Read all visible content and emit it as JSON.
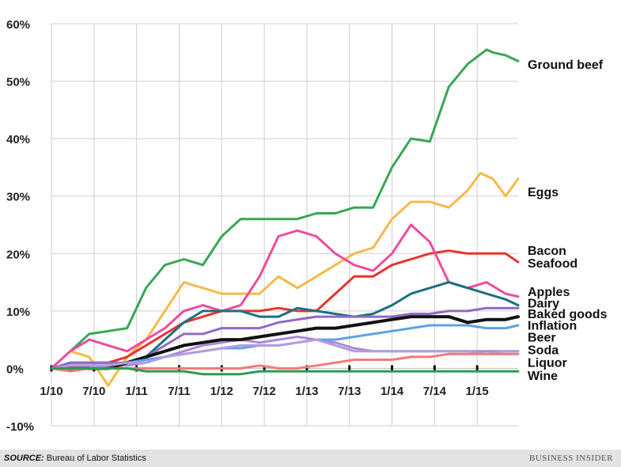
{
  "chart_data": {
    "type": "line",
    "title": "",
    "xlabel": "",
    "ylabel": "",
    "ylim": [
      -10,
      60
    ],
    "yticks": [
      "60%",
      "50%",
      "40%",
      "30%",
      "20%",
      "10%",
      "0%",
      "-10%"
    ],
    "xticks": [
      "1/10",
      "7/10",
      "1/11",
      "7/11",
      "1/12",
      "7/12",
      "1/13",
      "7/13",
      "1/14",
      "7/14",
      "1/15"
    ],
    "grid": true,
    "legend": "direct labels at right end of lines",
    "series": [
      {
        "name": "Ground beef",
        "color": "#3aa655",
        "points": [
          [
            0,
            0
          ],
          [
            3,
            3
          ],
          [
            6,
            6
          ],
          [
            9,
            6.5
          ],
          [
            12,
            7
          ],
          [
            15,
            14
          ],
          [
            18,
            18
          ],
          [
            21,
            19
          ],
          [
            24,
            18
          ],
          [
            27,
            23
          ],
          [
            30,
            26
          ],
          [
            33,
            26
          ],
          [
            36,
            26
          ],
          [
            39,
            26
          ],
          [
            42,
            27
          ],
          [
            45,
            27
          ],
          [
            48,
            28
          ],
          [
            51,
            28
          ],
          [
            54,
            35
          ],
          [
            57,
            40
          ],
          [
            60,
            39.5
          ],
          [
            63,
            49
          ],
          [
            66,
            53
          ],
          [
            69,
            55.5
          ],
          [
            70,
            55
          ],
          [
            72,
            54.5
          ],
          [
            74,
            53.5
          ]
        ]
      },
      {
        "name": "Eggs",
        "color": "#f8b94a",
        "points": [
          [
            0,
            0
          ],
          [
            3,
            3
          ],
          [
            6,
            2
          ],
          [
            9,
            -3
          ],
          [
            12,
            2
          ],
          [
            15,
            5
          ],
          [
            18,
            10
          ],
          [
            21,
            15
          ],
          [
            24,
            14
          ],
          [
            27,
            13
          ],
          [
            30,
            13
          ],
          [
            33,
            13
          ],
          [
            36,
            16
          ],
          [
            39,
            14
          ],
          [
            42,
            16
          ],
          [
            45,
            18
          ],
          [
            48,
            20
          ],
          [
            51,
            21
          ],
          [
            54,
            26
          ],
          [
            57,
            29
          ],
          [
            60,
            29
          ],
          [
            63,
            28
          ],
          [
            66,
            31
          ],
          [
            68,
            34
          ],
          [
            70,
            33
          ],
          [
            72,
            30
          ],
          [
            74,
            33
          ]
        ]
      },
      {
        "name": "Bacon",
        "color": "#e8332c",
        "points": [
          [
            0,
            0
          ],
          [
            3,
            1
          ],
          [
            6,
            1
          ],
          [
            9,
            1
          ],
          [
            12,
            2
          ],
          [
            15,
            4
          ],
          [
            18,
            6
          ],
          [
            21,
            8
          ],
          [
            24,
            9
          ],
          [
            27,
            10
          ],
          [
            30,
            10
          ],
          [
            33,
            10
          ],
          [
            36,
            10.5
          ],
          [
            39,
            10
          ],
          [
            42,
            10
          ],
          [
            45,
            13
          ],
          [
            48,
            16
          ],
          [
            51,
            16
          ],
          [
            54,
            18
          ],
          [
            57,
            19
          ],
          [
            60,
            20
          ],
          [
            63,
            20.5
          ],
          [
            66,
            20
          ],
          [
            69,
            20
          ],
          [
            72,
            20
          ],
          [
            74,
            18.5
          ]
        ]
      },
      {
        "name": "Seafood",
        "color": "#ec4ca0",
        "points": [
          [
            0,
            0
          ],
          [
            3,
            3
          ],
          [
            6,
            5
          ],
          [
            9,
            4
          ],
          [
            12,
            3
          ],
          [
            15,
            5
          ],
          [
            18,
            7
          ],
          [
            21,
            10
          ],
          [
            24,
            11
          ],
          [
            27,
            10
          ],
          [
            30,
            11
          ],
          [
            33,
            16
          ],
          [
            36,
            23
          ],
          [
            39,
            24
          ],
          [
            42,
            23
          ],
          [
            45,
            20
          ],
          [
            48,
            18
          ],
          [
            51,
            17
          ],
          [
            54,
            20
          ],
          [
            57,
            25
          ],
          [
            60,
            22
          ],
          [
            63,
            15
          ],
          [
            66,
            14
          ],
          [
            69,
            15
          ],
          [
            72,
            13
          ],
          [
            74,
            12.5
          ]
        ]
      },
      {
        "name": "Apples",
        "color": "#1e6f82",
        "points": [
          [
            0,
            0
          ],
          [
            3,
            0
          ],
          [
            6,
            0
          ],
          [
            9,
            0
          ],
          [
            12,
            1
          ],
          [
            15,
            2
          ],
          [
            18,
            5
          ],
          [
            21,
            8
          ],
          [
            24,
            10
          ],
          [
            27,
            10
          ],
          [
            30,
            10
          ],
          [
            33,
            9
          ],
          [
            36,
            9
          ],
          [
            39,
            10.5
          ],
          [
            42,
            10
          ],
          [
            45,
            9.5
          ],
          [
            48,
            9
          ],
          [
            51,
            9.5
          ],
          [
            54,
            11
          ],
          [
            57,
            13
          ],
          [
            60,
            14
          ],
          [
            63,
            15
          ],
          [
            66,
            14
          ],
          [
            69,
            13
          ],
          [
            72,
            12
          ],
          [
            74,
            11
          ]
        ]
      },
      {
        "name": "Dairy",
        "color": "#8e6bc4",
        "points": [
          [
            0,
            0
          ],
          [
            3,
            1
          ],
          [
            6,
            1
          ],
          [
            9,
            1
          ],
          [
            12,
            1
          ],
          [
            15,
            2
          ],
          [
            18,
            4
          ],
          [
            21,
            6
          ],
          [
            24,
            6
          ],
          [
            27,
            7
          ],
          [
            30,
            7
          ],
          [
            33,
            7
          ],
          [
            36,
            8
          ],
          [
            39,
            8.5
          ],
          [
            42,
            9
          ],
          [
            45,
            9
          ],
          [
            48,
            9
          ],
          [
            51,
            9
          ],
          [
            54,
            9
          ],
          [
            57,
            9.5
          ],
          [
            60,
            9.5
          ],
          [
            63,
            10
          ],
          [
            66,
            10
          ],
          [
            69,
            10.5
          ],
          [
            72,
            10.5
          ],
          [
            74,
            10.5
          ]
        ]
      },
      {
        "name": "Baked goods",
        "color": "#a98ad6",
        "points": [
          [
            0,
            0
          ],
          [
            3,
            0.5
          ],
          [
            6,
            0.5
          ],
          [
            9,
            0.5
          ],
          [
            12,
            0.5
          ],
          [
            15,
            1
          ],
          [
            18,
            2
          ],
          [
            21,
            3
          ],
          [
            24,
            4
          ],
          [
            27,
            4.5
          ],
          [
            30,
            5
          ],
          [
            33,
            4.5
          ],
          [
            36,
            5
          ],
          [
            39,
            5.5
          ],
          [
            42,
            5
          ],
          [
            45,
            4.5
          ],
          [
            48,
            3.5
          ],
          [
            51,
            3
          ],
          [
            54,
            3
          ],
          [
            57,
            3
          ],
          [
            60,
            3
          ],
          [
            63,
            3
          ],
          [
            66,
            3
          ],
          [
            69,
            3
          ],
          [
            72,
            3
          ],
          [
            74,
            3
          ]
        ]
      },
      {
        "name": "Inflation",
        "color": "#111111",
        "points": [
          [
            0,
            0
          ],
          [
            3,
            0
          ],
          [
            6,
            0
          ],
          [
            9,
            0
          ],
          [
            12,
            1
          ],
          [
            15,
            2
          ],
          [
            18,
            3
          ],
          [
            21,
            4
          ],
          [
            24,
            4.5
          ],
          [
            27,
            5
          ],
          [
            30,
            5
          ],
          [
            33,
            5.5
          ],
          [
            36,
            6
          ],
          [
            39,
            6.5
          ],
          [
            42,
            7
          ],
          [
            45,
            7
          ],
          [
            48,
            7.5
          ],
          [
            51,
            8
          ],
          [
            54,
            8.5
          ],
          [
            57,
            9
          ],
          [
            60,
            9
          ],
          [
            63,
            9
          ],
          [
            66,
            8
          ],
          [
            69,
            8.5
          ],
          [
            72,
            8.5
          ],
          [
            74,
            9
          ]
        ]
      },
      {
        "name": "Beer",
        "color": "#5ba3e8",
        "points": [
          [
            0,
            0
          ],
          [
            3,
            0
          ],
          [
            6,
            0
          ],
          [
            9,
            0.5
          ],
          [
            12,
            1
          ],
          [
            15,
            1.5
          ],
          [
            18,
            2
          ],
          [
            21,
            2.5
          ],
          [
            24,
            3
          ],
          [
            27,
            3.5
          ],
          [
            30,
            3.5
          ],
          [
            33,
            4
          ],
          [
            36,
            4
          ],
          [
            39,
            4.5
          ],
          [
            42,
            5
          ],
          [
            45,
            5
          ],
          [
            48,
            5.5
          ],
          [
            51,
            6
          ],
          [
            54,
            6.5
          ],
          [
            57,
            7
          ],
          [
            60,
            7.5
          ],
          [
            63,
            7.5
          ],
          [
            66,
            7.5
          ],
          [
            69,
            7
          ],
          [
            72,
            7
          ],
          [
            74,
            7.5
          ]
        ]
      },
      {
        "name": "Soda",
        "color": "#b39ddb",
        "points": [
          [
            0,
            0
          ],
          [
            3,
            0.5
          ],
          [
            6,
            0.5
          ],
          [
            9,
            0.5
          ],
          [
            12,
            1
          ],
          [
            15,
            1
          ],
          [
            18,
            2
          ],
          [
            21,
            2.5
          ],
          [
            24,
            3
          ],
          [
            27,
            3.5
          ],
          [
            30,
            4
          ],
          [
            33,
            4
          ],
          [
            36,
            4
          ],
          [
            39,
            4.5
          ],
          [
            42,
            5
          ],
          [
            45,
            4
          ],
          [
            48,
            3
          ],
          [
            51,
            3
          ],
          [
            54,
            3
          ],
          [
            57,
            3
          ],
          [
            60,
            3
          ],
          [
            63,
            3
          ],
          [
            66,
            3
          ],
          [
            69,
            2.5
          ],
          [
            72,
            3
          ],
          [
            74,
            3
          ]
        ]
      },
      {
        "name": "Liquor",
        "color": "#f27a78",
        "points": [
          [
            0,
            0
          ],
          [
            3,
            -0.5
          ],
          [
            6,
            0
          ],
          [
            9,
            0
          ],
          [
            12,
            0
          ],
          [
            15,
            0
          ],
          [
            18,
            0
          ],
          [
            21,
            0
          ],
          [
            24,
            0
          ],
          [
            27,
            0
          ],
          [
            30,
            0
          ],
          [
            33,
            0.5
          ],
          [
            36,
            0
          ],
          [
            39,
            0
          ],
          [
            42,
            0.5
          ],
          [
            45,
            1
          ],
          [
            48,
            1.5
          ],
          [
            51,
            1.5
          ],
          [
            54,
            1.5
          ],
          [
            57,
            2
          ],
          [
            60,
            2
          ],
          [
            63,
            2.5
          ],
          [
            66,
            2.5
          ],
          [
            69,
            2.5
          ],
          [
            72,
            2.5
          ],
          [
            74,
            2.5
          ]
        ]
      },
      {
        "name": "Wine",
        "color": "#2e9a54",
        "points": [
          [
            0,
            0
          ],
          [
            3,
            0
          ],
          [
            6,
            0
          ],
          [
            9,
            0
          ],
          [
            12,
            0
          ],
          [
            15,
            -0.5
          ],
          [
            18,
            -0.5
          ],
          [
            21,
            -0.5
          ],
          [
            24,
            -1
          ],
          [
            27,
            -1
          ],
          [
            30,
            -1
          ],
          [
            33,
            -0.5
          ],
          [
            36,
            -0.5
          ],
          [
            39,
            -0.5
          ],
          [
            42,
            -0.5
          ],
          [
            45,
            -0.5
          ],
          [
            48,
            -0.5
          ],
          [
            51,
            -0.5
          ],
          [
            54,
            -0.5
          ],
          [
            57,
            -0.5
          ],
          [
            60,
            -0.5
          ],
          [
            63,
            -0.5
          ],
          [
            66,
            -0.5
          ],
          [
            69,
            -0.5
          ],
          [
            72,
            -0.5
          ],
          [
            74,
            -0.5
          ]
        ]
      }
    ]
  },
  "footer": {
    "source_label": "SOURCE:",
    "source_text": "Bureau of Labor Statistics",
    "brand": "BUSINESS INSIDER"
  }
}
